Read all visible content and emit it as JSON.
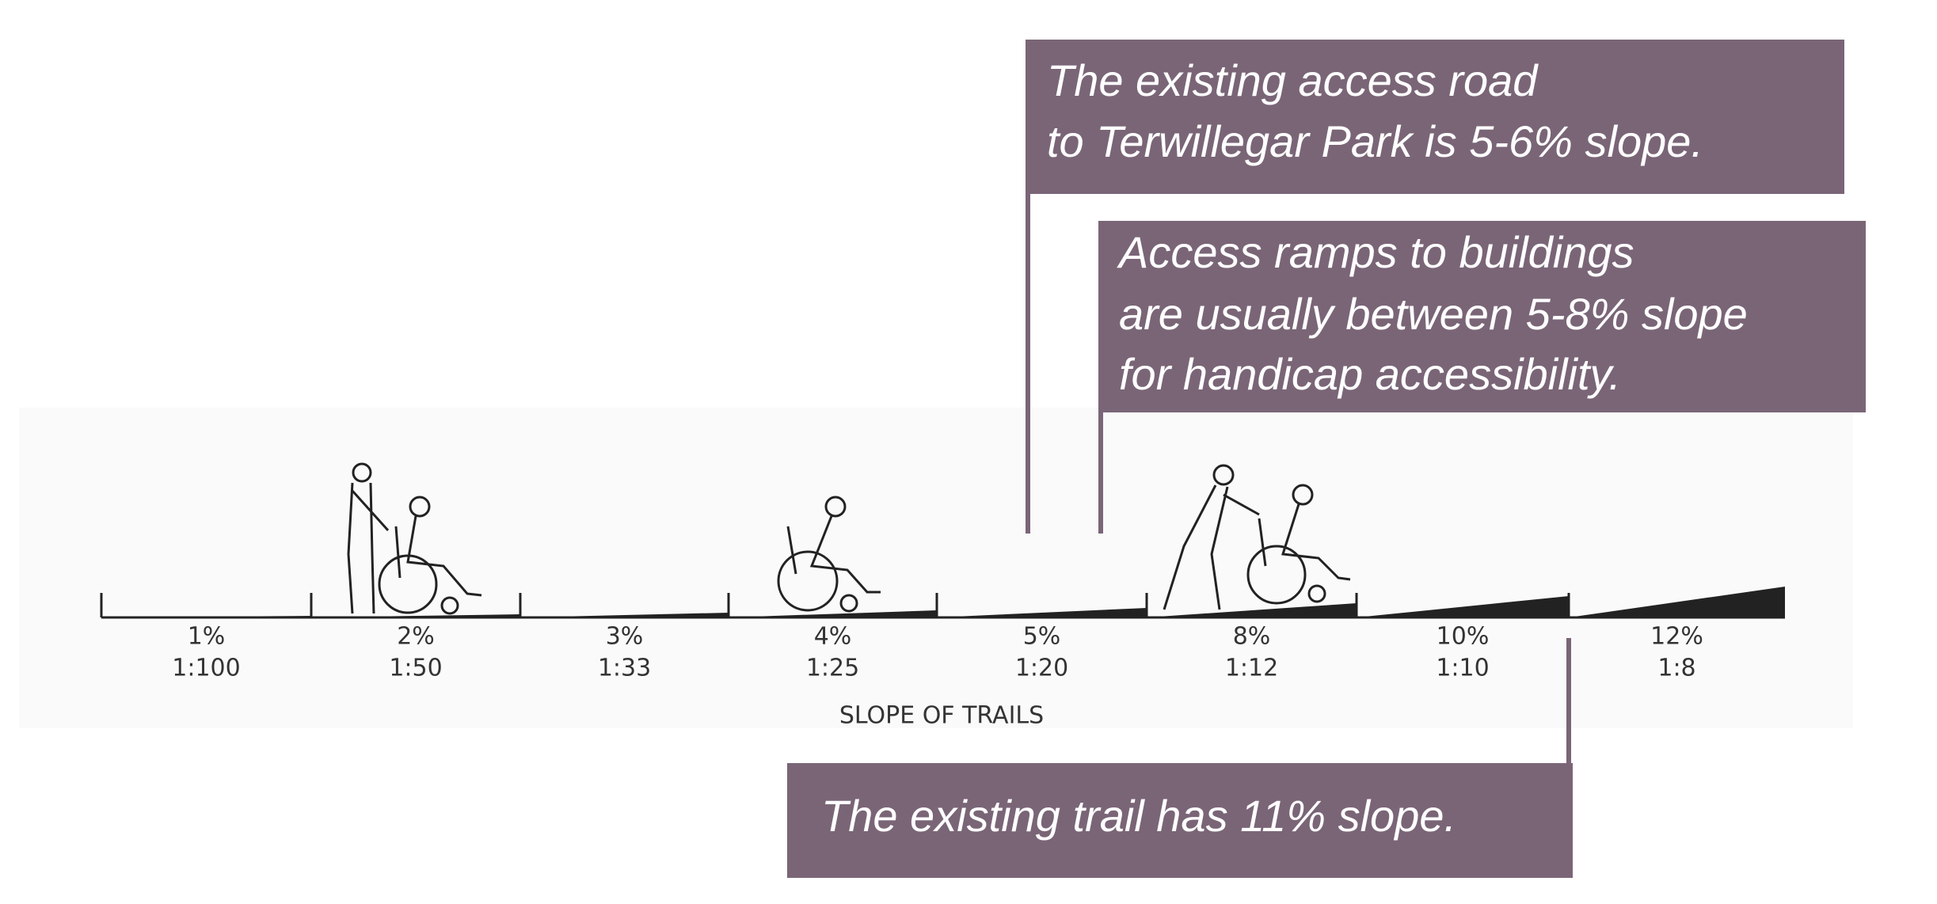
{
  "callouts": [
    {
      "lines": [
        "The existing access road",
        "to Terwillegar Park is 5-6% slope."
      ]
    },
    {
      "lines": [
        "Access ramps to buildings",
        "are usually between 5-8% slope",
        "for handicap accessibility."
      ]
    },
    {
      "lines": [
        "The existing trail has 11% slope."
      ]
    }
  ],
  "slopes": [
    {
      "percent": "1%",
      "ratio": "1:100"
    },
    {
      "percent": "2%",
      "ratio": "1:50"
    },
    {
      "percent": "3%",
      "ratio": "1:33"
    },
    {
      "percent": "4%",
      "ratio": "1:25"
    },
    {
      "percent": "5%",
      "ratio": "1:20"
    },
    {
      "percent": "8%",
      "ratio": "1:12"
    },
    {
      "percent": "10%",
      "ratio": "1:10"
    },
    {
      "percent": "12%",
      "ratio": "1:8"
    }
  ],
  "axis_title": "SLOPE OF TRAILS"
}
